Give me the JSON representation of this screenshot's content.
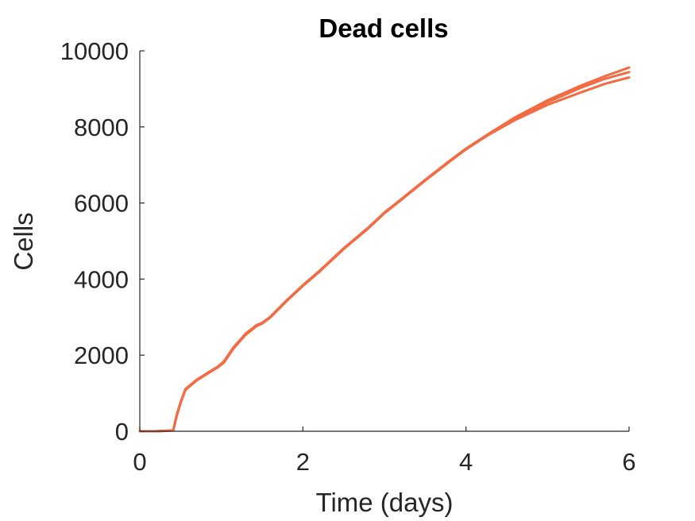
{
  "chart_data": {
    "type": "line",
    "title": "Dead cells",
    "xlabel": "Time (days)",
    "ylabel": "Cells",
    "xlim": [
      0,
      6
    ],
    "ylim": [
      0,
      10000
    ],
    "xticks": [
      "0",
      "2",
      "4",
      "6"
    ],
    "yticks": [
      "0",
      "2000",
      "4000",
      "6000",
      "8000",
      "10000"
    ],
    "xtick_values": [
      0,
      2,
      4,
      6
    ],
    "ytick_values": [
      0,
      2000,
      4000,
      6000,
      8000,
      10000
    ],
    "grid": false,
    "series_color": "#F26B43",
    "series": [
      {
        "x": [
          0,
          0.2,
          0.41,
          0.45,
          0.5,
          0.56,
          0.7,
          0.85,
          0.95,
          1.03,
          1.15,
          1.3,
          1.43,
          1.5,
          1.6,
          1.8,
          2.0,
          2.2,
          2.5,
          2.8,
          3.0,
          3.2,
          3.5,
          3.8,
          4.0,
          4.3,
          4.6,
          5.0,
          5.4,
          5.7,
          6.0
        ],
        "y": [
          0,
          0,
          20,
          400,
          750,
          1100,
          1350,
          1550,
          1680,
          1820,
          2200,
          2560,
          2780,
          2840,
          3000,
          3430,
          3830,
          4200,
          4800,
          5340,
          5740,
          6080,
          6600,
          7100,
          7420,
          7820,
          8180,
          8580,
          8900,
          9130,
          9300
        ]
      },
      {
        "x": [
          0,
          0.2,
          0.41,
          0.45,
          0.5,
          0.56,
          0.7,
          0.85,
          0.95,
          1.03,
          1.15,
          1.3,
          1.43,
          1.5,
          1.6,
          1.8,
          2.0,
          2.2,
          2.5,
          2.8,
          3.0,
          3.2,
          3.5,
          3.8,
          4.0,
          4.3,
          4.6,
          5.0,
          5.4,
          5.7,
          6.0
        ],
        "y": [
          0,
          0,
          20,
          380,
          740,
          1090,
          1340,
          1540,
          1670,
          1800,
          2180,
          2540,
          2760,
          2830,
          2990,
          3420,
          3820,
          4190,
          4790,
          5330,
          5730,
          6070,
          6590,
          7090,
          7410,
          7830,
          8220,
          8650,
          9020,
          9260,
          9440
        ]
      },
      {
        "x": [
          0,
          0.2,
          0.41,
          0.45,
          0.5,
          0.56,
          0.7,
          0.85,
          0.95,
          1.03,
          1.15,
          1.3,
          1.43,
          1.5,
          1.6,
          1.8,
          2.0,
          2.2,
          2.5,
          2.8,
          3.0,
          3.2,
          3.5,
          3.8,
          4.0,
          4.3,
          4.6,
          5.0,
          5.4,
          5.7,
          6.0
        ],
        "y": [
          0,
          0,
          20,
          410,
          760,
          1110,
          1360,
          1560,
          1690,
          1830,
          2210,
          2570,
          2790,
          2850,
          3010,
          3440,
          3840,
          4210,
          4810,
          5350,
          5750,
          6090,
          6610,
          7110,
          7430,
          7850,
          8250,
          8700,
          9080,
          9330,
          9560
        ]
      }
    ]
  }
}
